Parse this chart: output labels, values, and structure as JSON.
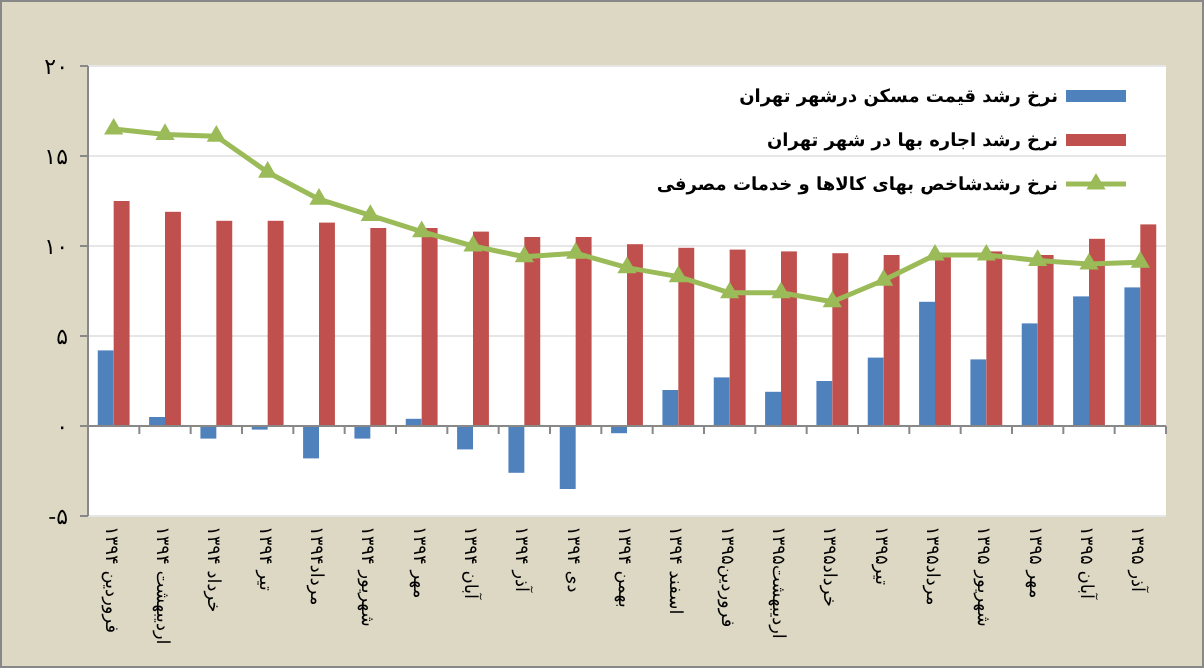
{
  "chart_data": {
    "type": "bar",
    "categories": [
      "فروردین ۱۳۹۴",
      "اردیبهشت ۱۳۹۴",
      "خرداد ۱۳۹۴",
      "تیر ۱۳۹۴",
      "مرداد۱۳۹۴",
      "شهریور ۱۳۹۴",
      "مهر ۱۳۹۴",
      "آبان ۱۳۹۴",
      "آذر ۱۳۹۴",
      "دی ۱۳۹۴",
      "بهمن ۱۳۹۴",
      "اسفند ۱۳۹۴",
      "فروردین۱۳۹۵",
      "اردیبهشت۱۳۹۵",
      "خرداد۱۳۹۵",
      "تیر۱۳۹۵",
      "مرداد۱۳۹۵",
      "شهریور ۱۳۹۵",
      "مهر ۱۳۹۵",
      "آبان ۱۳۹۵",
      "آذر ۱۳۹۵"
    ],
    "series": [
      {
        "name": "نرخ رشد قیمت مسکن  درشهر تهران",
        "color": "#4f81bd",
        "values": [
          4.2,
          0.5,
          -0.7,
          -0.2,
          -1.8,
          -0.7,
          0.4,
          -1.3,
          -2.6,
          -3.5,
          -0.4,
          2.0,
          2.7,
          1.9,
          2.5,
          3.8,
          6.9,
          3.7,
          5.7,
          7.2,
          7.7
        ]
      },
      {
        "name": "نرخ رشد اجاره بها در شهر تهران",
        "color": "#c0504d",
        "values": [
          12.5,
          11.9,
          11.4,
          11.4,
          11.3,
          11.0,
          11.0,
          10.8,
          10.5,
          10.5,
          10.1,
          9.9,
          9.8,
          9.7,
          9.6,
          9.5,
          9.5,
          9.7,
          9.5,
          10.4,
          11.2
        ]
      },
      {
        "name": "نرخ رشدشاخص بهای کالاها و خدمات مصرفی",
        "type": "line",
        "color": "#9bbb59",
        "marker": "triangle",
        "values": [
          16.5,
          16.2,
          16.1,
          14.1,
          12.6,
          11.7,
          10.8,
          10.0,
          9.4,
          9.6,
          8.8,
          8.3,
          7.4,
          7.4,
          6.9,
          8.1,
          9.5,
          9.5,
          9.2,
          9.0,
          9.1
        ]
      }
    ],
    "ylim": [
      -5,
      20
    ],
    "yticks": [
      {
        "value": -5,
        "label": "-۵"
      },
      {
        "value": 0,
        "label": "۰"
      },
      {
        "value": 5,
        "label": "۵"
      },
      {
        "value": 10,
        "label": "۱۰"
      },
      {
        "value": 15,
        "label": "۱۵"
      },
      {
        "value": 20,
        "label": "۲۰"
      }
    ],
    "grid": "y",
    "legend": "top right"
  }
}
